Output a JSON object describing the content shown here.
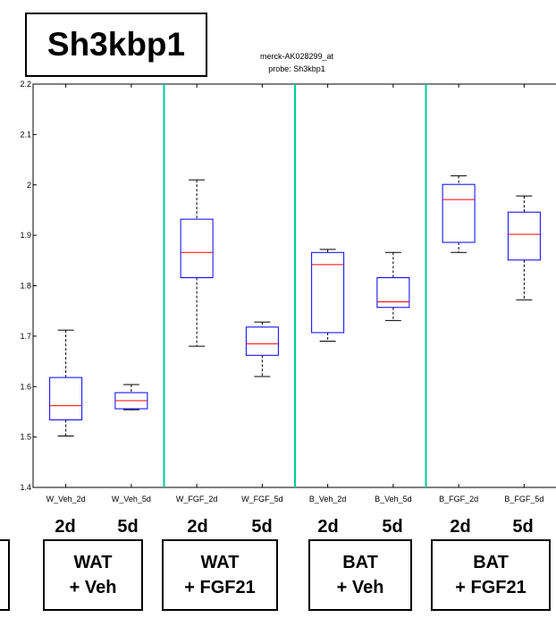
{
  "gene_title": "Sh3kbp1",
  "probe_id": "merck-AK028299_at",
  "probe_name": "probe: Sh3kbp1",
  "colors": {
    "box": "#0000ff",
    "median": "#ff0000",
    "separator": "#00cc99",
    "whisker": "#000000"
  },
  "day_labels": [
    "2d",
    "5d",
    "2d",
    "5d",
    "2d",
    "5d",
    "2d",
    "5d"
  ],
  "groups": [
    {
      "line1": "WAT",
      "line2": "+ Veh"
    },
    {
      "line1": "WAT",
      "line2": "+ FGF21"
    },
    {
      "line1": "BAT",
      "line2": "+ Veh"
    },
    {
      "line1": "BAT",
      "line2": "+ FGF21"
    }
  ],
  "chart_data": {
    "type": "box",
    "ylim": [
      1.4,
      2.2
    ],
    "yticks": [
      1.4,
      1.5,
      1.6,
      1.7,
      1.8,
      1.9,
      2,
      2.1,
      2.2
    ],
    "ytick_labels": [
      "1.4",
      "1.5",
      "1.6",
      "1.7",
      "1.8",
      "1.9",
      "2",
      "2.1",
      "2.2"
    ],
    "categories": [
      "W_Veh_2d",
      "W_Veh_5d",
      "W_FGF_2d",
      "W_FGF_5d",
      "B_Veh_2d",
      "B_Veh_5d",
      "B_FGF_2d",
      "B_FGF_5d"
    ],
    "boxes": [
      {
        "min": 1.502,
        "q1": 1.534,
        "median": 1.562,
        "q3": 1.618,
        "max": 1.712
      },
      {
        "min": 1.554,
        "q1": 1.556,
        "median": 1.572,
        "q3": 1.588,
        "max": 1.604
      },
      {
        "min": 1.68,
        "q1": 1.816,
        "median": 1.866,
        "q3": 1.932,
        "max": 2.01
      },
      {
        "min": 1.62,
        "q1": 1.662,
        "median": 1.685,
        "q3": 1.718,
        "max": 1.728
      },
      {
        "min": 1.69,
        "q1": 1.707,
        "median": 1.842,
        "q3": 1.866,
        "max": 1.872
      },
      {
        "min": 1.731,
        "q1": 1.757,
        "median": 1.768,
        "q3": 1.816,
        "max": 1.866
      },
      {
        "min": 1.866,
        "q1": 1.886,
        "median": 1.971,
        "q3": 2.001,
        "max": 2.018
      },
      {
        "min": 1.772,
        "q1": 1.851,
        "median": 1.902,
        "q3": 1.946,
        "max": 1.978
      }
    ],
    "separators_after": [
      2,
      4,
      6
    ],
    "grid": false
  }
}
